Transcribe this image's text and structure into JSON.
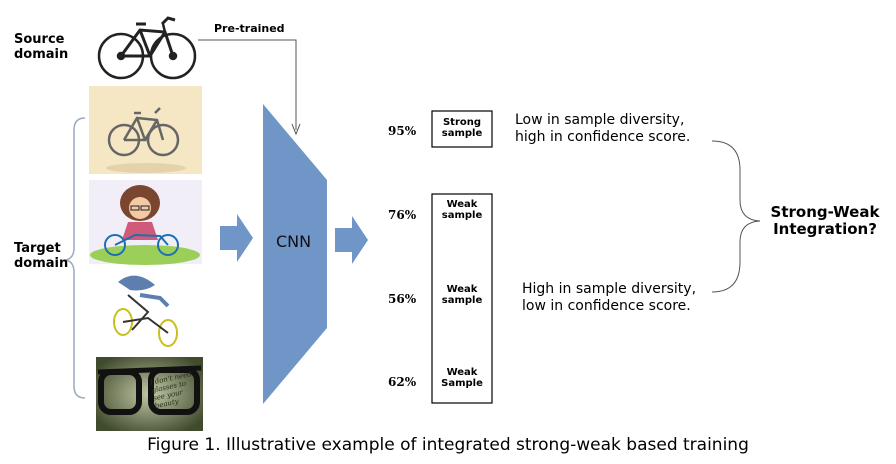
{
  "labels": {
    "source_domain": "Source domain",
    "target_domain": "Target domain",
    "pretrained": "Pre-trained",
    "cnn": "CNN"
  },
  "samples": [
    {
      "percent": "95%",
      "label": "Strong sample"
    },
    {
      "percent": "76%",
      "label": "Weak sample"
    },
    {
      "percent": "56%",
      "label": "Weak sample"
    },
    {
      "percent": "62%",
      "label": "Weak Sample"
    }
  ],
  "notes": {
    "strong": [
      "Low in sample diversity,",
      "high in confidence score."
    ],
    "weak": [
      "High in sample diversity,",
      "low in confidence score."
    ]
  },
  "integration": [
    "Strong-Weak",
    "Integration?"
  ],
  "glasses_text": "I don't need glasses to see your beauty",
  "caption": "Figure 1. Illustrative example of integrated strong-weak based training",
  "colors": {
    "cnn_fill": "#7096c8",
    "arrow_fill": "#7096c8",
    "line": "#555555",
    "brace": "#9aaac0"
  }
}
